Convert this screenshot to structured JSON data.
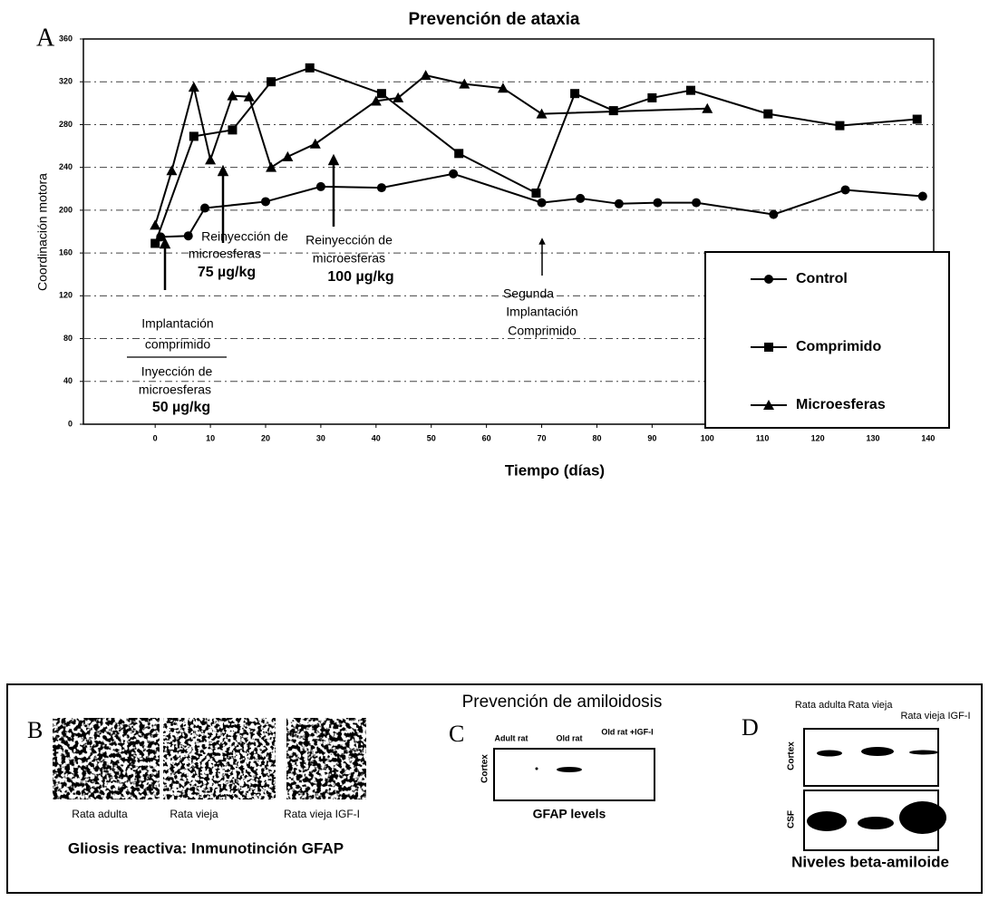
{
  "figure_label": "A",
  "chart_data": {
    "type": "line",
    "title": "Prevención de ataxia",
    "x_label": "Tiempo (días)",
    "y_label": "Coordinación motora",
    "xlim": [
      -13,
      141
    ],
    "xticks": [
      0,
      10,
      20,
      30,
      40,
      50,
      60,
      70,
      80,
      90,
      100,
      110,
      120,
      130,
      140
    ],
    "ylim": [
      0,
      360
    ],
    "yticks": [
      0,
      40,
      80,
      120,
      160,
      200,
      240,
      280,
      320,
      360
    ],
    "grid": true,
    "legend": "lower right",
    "series": [
      {
        "name": "Control",
        "color": "#000000",
        "marker": "circle",
        "x": [
          1,
          6,
          9,
          20,
          30,
          41,
          54,
          70,
          77,
          84,
          91,
          98,
          112,
          125,
          139
        ],
        "values": [
          175,
          176,
          202,
          208,
          222,
          221,
          234,
          207,
          211,
          206,
          207,
          207,
          196,
          219,
          213
        ]
      },
      {
        "name": "Comprimido",
        "color": "#000000",
        "marker": "square",
        "x": [
          0,
          7,
          14,
          21,
          28,
          41,
          55,
          69,
          76,
          83,
          90,
          97,
          111,
          124,
          138
        ],
        "values": [
          169,
          269,
          275,
          320,
          333,
          309,
          253,
          216,
          309,
          293,
          305,
          312,
          290,
          279,
          285
        ]
      },
      {
        "name": "Microesferas",
        "color": "#000000",
        "marker": "triangle",
        "x": [
          0,
          3,
          7,
          10,
          14,
          17,
          21,
          24,
          29,
          40,
          44,
          49,
          56,
          63,
          70,
          100
        ],
        "values": [
          186,
          237,
          315,
          247,
          307,
          306,
          240,
          250,
          262,
          302,
          305,
          326,
          318,
          314,
          290,
          295
        ]
      }
    ],
    "annotations": [
      "Reinyección de",
      "microesferas",
      "75 µg/kg",
      "Reinyección de",
      "microesferas",
      "100 µg/kg",
      "Implantación",
      "comprimido",
      "Inyección de",
      "microesferas",
      "50 µg/kg",
      "Segunda",
      "Implantación",
      "Comprimido"
    ]
  },
  "lower_panel": {
    "title": "Prevención de amiloidosis",
    "B": {
      "label": "B",
      "captions": [
        "Rata adulta",
        "Rata vieja",
        "Rata vieja IGF-I"
      ],
      "title": "Gliosis reactiva: Inmunotinción GFAP"
    },
    "C": {
      "label": "C",
      "lanes": [
        "Adult rat",
        "Old rat",
        "Old rat +IGF-I"
      ],
      "row_label": "Cortex",
      "caption": "GFAP levels"
    },
    "D": {
      "label": "D",
      "lanes": [
        "Rata adulta",
        "Rata vieja",
        "Rata vieja IGF-I"
      ],
      "rows": [
        "Cortex",
        "CSF"
      ],
      "caption": "Niveles beta-amiloide"
    }
  }
}
